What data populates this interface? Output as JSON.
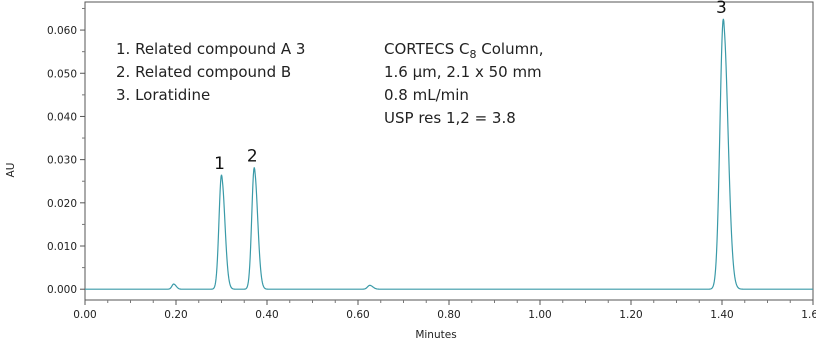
{
  "chart_data": {
    "type": "line",
    "title": "",
    "xlabel": "Minutes",
    "ylabel": "AU",
    "xlim": [
      0.0,
      1.6
    ],
    "ylim": [
      -0.0025,
      0.0665
    ],
    "x_ticks": [
      "0.00",
      "0.20",
      "0.40",
      "0.60",
      "0.80",
      "1.00",
      "1.20",
      "1.40",
      "1.60"
    ],
    "y_ticks": [
      "0.000",
      "0.010",
      "0.020",
      "0.030",
      "0.040",
      "0.050",
      "0.060"
    ],
    "grid": false,
    "line_color": "#3a9aa8",
    "baseline": 0.0,
    "peaks": [
      {
        "label": "1",
        "rt": 0.3,
        "height": 0.0265,
        "sigma": 0.0055,
        "tail": 0.01
      },
      {
        "label": "2",
        "rt": 0.372,
        "height": 0.0282,
        "sigma": 0.0055,
        "tail": 0.009
      },
      {
        "label": "3",
        "rt": 1.403,
        "height": 0.0626,
        "sigma": 0.0075,
        "tail": 0.013
      },
      {
        "label": "",
        "rt": 0.195,
        "height": 0.0012,
        "sigma": 0.004,
        "tail": 0.01
      },
      {
        "label": "",
        "rt": 0.626,
        "height": 0.0009,
        "sigma": 0.005,
        "tail": 0.01
      }
    ],
    "legend": [
      "1. Related compound A 3",
      "2. Related compound B",
      "3. Loratidine"
    ],
    "info": {
      "line1_prefix": "CORTECS C",
      "line1_sub": "8",
      "line1_suffix": " Column,",
      "line2": "1.6 µm, 2.1 x 50 mm",
      "line3": "0.8 mL/min",
      "line4": "USP res 1,2 = 3.8"
    }
  }
}
